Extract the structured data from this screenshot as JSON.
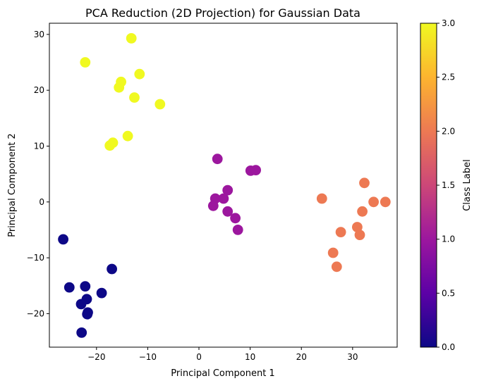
{
  "chart_data": {
    "type": "scatter",
    "title": "PCA Reduction (2D Projection) for Gaussian Data",
    "xlabel": "Principal Component 1",
    "ylabel": "Principal Component 2",
    "xlim": [
      -29.2,
      38.7
    ],
    "ylim": [
      -26.0,
      32.0
    ],
    "xticks": [
      -20,
      -10,
      0,
      10,
      20,
      30
    ],
    "xtick_labels": [
      "−20",
      "−10",
      "0",
      "10",
      "20",
      "30"
    ],
    "yticks": [
      -20,
      -10,
      0,
      10,
      20,
      30
    ],
    "ytick_labels": [
      "−20",
      "−10",
      "0",
      "10",
      "20",
      "30"
    ],
    "grid": false,
    "colormap": "plasma",
    "colorbar": {
      "label": "Class Label",
      "range": [
        0.0,
        3.0
      ],
      "ticks": [
        0.0,
        0.5,
        1.0,
        1.5,
        2.0,
        2.5,
        3.0
      ],
      "tick_labels": [
        "0.0",
        "0.5",
        "1.0",
        "1.5",
        "2.0",
        "2.5",
        "3.0"
      ],
      "stops": [
        "#0d0887",
        "#5c01a6",
        "#9c179e",
        "#cc4778",
        "#ed7953",
        "#fdb42f",
        "#f0f921"
      ]
    },
    "series": [
      {
        "label": 0,
        "color": "#0d0887",
        "points": [
          [
            -26.5,
            -6.7
          ],
          [
            -25.3,
            -15.3
          ],
          [
            -22.2,
            -15.1
          ],
          [
            -17.0,
            -12.0
          ],
          [
            -21.9,
            -17.4
          ],
          [
            -23.0,
            -18.3
          ],
          [
            -19.0,
            -16.3
          ],
          [
            -21.7,
            -19.8
          ],
          [
            -21.8,
            -20.1
          ],
          [
            -22.9,
            -23.4
          ]
        ]
      },
      {
        "label": 1,
        "color": "#9c179e",
        "points": [
          [
            3.6,
            7.7
          ],
          [
            10.1,
            5.6
          ],
          [
            11.1,
            5.7
          ],
          [
            3.2,
            0.6
          ],
          [
            5.6,
            2.1
          ],
          [
            4.8,
            0.6
          ],
          [
            2.8,
            -0.7
          ],
          [
            5.6,
            -1.7
          ],
          [
            7.1,
            -2.9
          ],
          [
            7.6,
            -5.0
          ]
        ]
      },
      {
        "label": 2,
        "color": "#ed7953",
        "points": [
          [
            24.0,
            0.6
          ],
          [
            32.3,
            3.4
          ],
          [
            34.1,
            0.0
          ],
          [
            36.4,
            0.0
          ],
          [
            31.9,
            -1.7
          ],
          [
            27.7,
            -5.4
          ],
          [
            30.9,
            -4.5
          ],
          [
            31.4,
            -5.9
          ],
          [
            26.2,
            -9.1
          ],
          [
            26.9,
            -11.6
          ]
        ]
      },
      {
        "label": 3,
        "color": "#f0f921",
        "points": [
          [
            -13.2,
            29.3
          ],
          [
            -22.2,
            25.0
          ],
          [
            -15.2,
            21.5
          ],
          [
            -11.6,
            22.9
          ],
          [
            -15.6,
            20.5
          ],
          [
            -12.6,
            18.7
          ],
          [
            -7.6,
            17.5
          ],
          [
            -13.9,
            11.8
          ],
          [
            -16.8,
            10.6
          ],
          [
            -17.4,
            10.1
          ]
        ]
      }
    ]
  }
}
